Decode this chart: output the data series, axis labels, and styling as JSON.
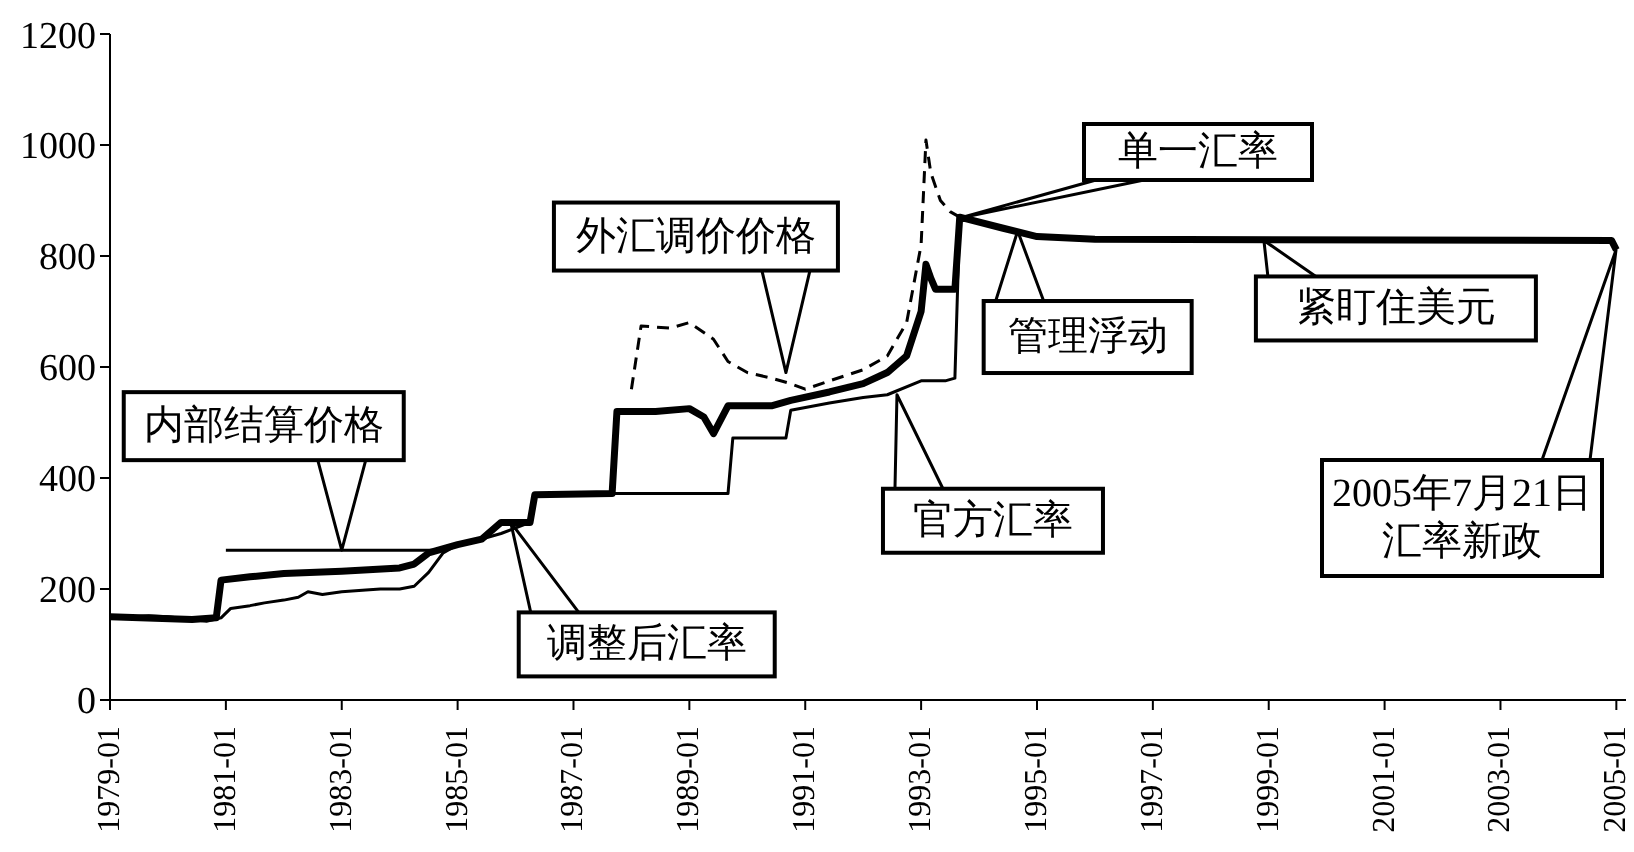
{
  "chart_data": {
    "type": "line",
    "xlim": [
      "1979-01",
      "2005-03"
    ],
    "xticks": [
      "1979-01",
      "1981-01",
      "1983-01",
      "1985-01",
      "1987-01",
      "1989-01",
      "1991-01",
      "1993-01",
      "1995-01",
      "1997-01",
      "1999-01",
      "2001-01",
      "2003-01",
      "2005-01"
    ],
    "ylim": [
      0,
      1200
    ],
    "yticks": [
      0,
      200,
      400,
      600,
      800,
      1000,
      1200
    ],
    "marker": "none",
    "series": [
      {
        "color": "#000000",
        "line_style": "solid",
        "x": [
          "1981-01",
          "1984-08"
        ],
        "values": [
          270,
          270
        ]
      },
      {
        "color": "#000000",
        "line_style": "solid",
        "x": [
          "1979-01",
          "1979-06",
          "1979-09",
          "1980-01",
          "1980-06",
          "1980-09",
          "1980-12",
          "1981-02",
          "1981-06",
          "1981-09",
          "1982-01",
          "1982-04",
          "1982-06",
          "1982-09",
          "1983-01",
          "1983-06",
          "1983-09",
          "1984-01",
          "1984-04",
          "1984-07",
          "1984-10",
          "1985-01",
          "1985-06",
          "1985-10",
          "1986-04",
          "1986-05",
          "1987-06",
          "1988-06",
          "1989-06",
          "1989-09",
          "1989-10",
          "1990-06",
          "1990-09",
          "1990-10",
          "1991-06",
          "1992-01",
          "1992-06",
          "1993-01",
          "1993-06",
          "1993-08",
          "1993-09"
        ],
        "values": [
          150,
          150,
          152,
          150,
          145,
          142,
          148,
          165,
          170,
          175,
          180,
          185,
          195,
          190,
          195,
          198,
          200,
          200,
          205,
          230,
          265,
          280,
          290,
          300,
          320,
          370,
          372,
          372,
          372,
          372,
          472,
          472,
          472,
          522,
          535,
          545,
          550,
          575,
          575,
          580,
          870
        ]
      },
      {
        "color": "#000000",
        "line_style": "solid",
        "x": [
          "1979-01",
          "1980-06",
          "1980-11",
          "1980-12",
          "1981-06",
          "1982-01",
          "1983-01",
          "1984-01",
          "1984-04",
          "1984-07",
          "1985-01",
          "1985-06",
          "1985-10",
          "1986-04",
          "1986-05",
          "1987-09",
          "1987-10",
          "1988-06",
          "1989-01",
          "1989-04",
          "1989-06",
          "1989-09",
          "1990-06",
          "1990-10",
          "1991-06",
          "1992-01",
          "1992-06",
          "1992-10",
          "1993-01",
          "1993-02",
          "1993-03",
          "1993-04",
          "1993-08",
          "1993-09",
          "1994-06",
          "1995-01",
          "1996-01",
          "2004-12",
          "2005-01"
        ],
        "values": [
          150,
          145,
          148,
          216,
          222,
          228,
          232,
          238,
          245,
          265,
          280,
          290,
          320,
          320,
          370,
          372,
          520,
          520,
          525,
          510,
          480,
          530,
          530,
          540,
          555,
          570,
          590,
          620,
          700,
          785,
          760,
          740,
          740,
          870,
          850,
          835,
          830,
          828,
          811
        ]
      },
      {
        "color": "#000000",
        "line_style": "dashed",
        "x": [
          "1988-01",
          "1988-03",
          "1988-09",
          "1989-01",
          "1989-06",
          "1989-09",
          "1990-01",
          "1990-06",
          "1990-10",
          "1991-01",
          "1991-06",
          "1992-01",
          "1992-06",
          "1992-10",
          "1993-01",
          "1993-02",
          "1993-03",
          "1993-05",
          "1993-07",
          "1993-09"
        ],
        "values": [
          560,
          674,
          670,
          680,
          650,
          610,
          590,
          580,
          570,
          560,
          575,
          595,
          620,
          680,
          820,
          1009,
          950,
          900,
          880,
          870
        ]
      }
    ],
    "annotations": [
      {
        "text": "内部结算价格",
        "x": "1983-01",
        "y": 270
      },
      {
        "text": "调整后汇率",
        "x": "1985-12",
        "y": 320
      },
      {
        "text": "外汇调价价格",
        "x": "1990-09",
        "y": 590
      },
      {
        "text": "官方汇率",
        "x": "1992-08",
        "y": 550
      },
      "单一汇率",
      {
        "text": "管理浮动",
        "x": "1994-09",
        "y": 845
      },
      {
        "text": "紧盯住美元",
        "x": "1998-12",
        "y": 828
      },
      "2005年7月21日汇率新政"
    ]
  }
}
